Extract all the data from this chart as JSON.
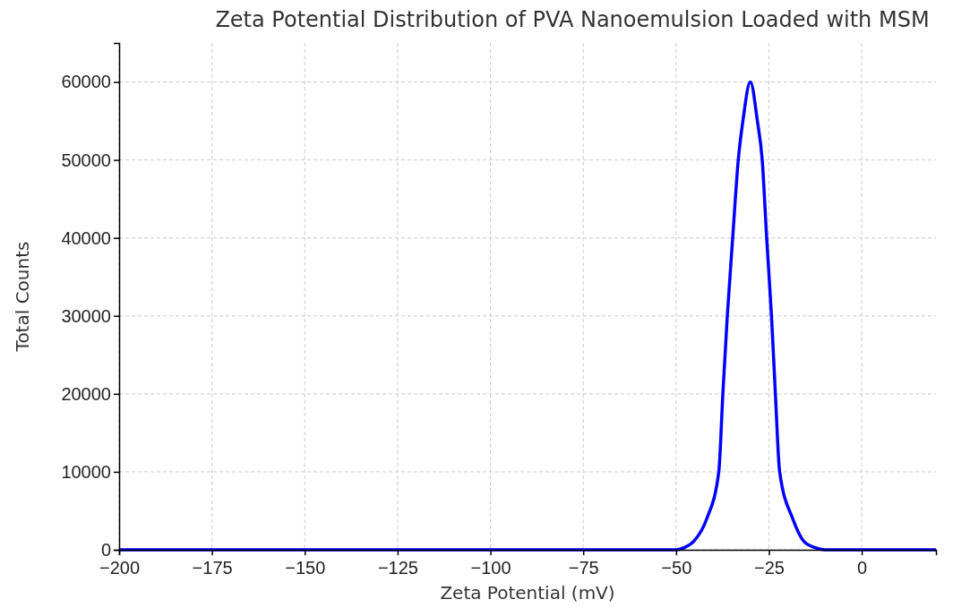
{
  "chart_data": {
    "type": "line",
    "title": "Zeta Potential Distribution of PVA Nanoemulsion Loaded with MSM",
    "xlabel": "Zeta Potential (mV)",
    "ylabel": "Total Counts",
    "x": [
      -200,
      -100,
      -50,
      -47.7,
      -45.2,
      -41.8,
      -38.5,
      -37.4,
      -36.2,
      -34.75,
      -33.25,
      -32,
      -30,
      -28.1,
      -26.8,
      -25.6,
      -24.3,
      -23.25,
      -22.1,
      -18.5,
      -15.6,
      -12.7,
      -10,
      0,
      20
    ],
    "series": [
      {
        "color": "#0000ff",
        "values": [
          0,
          0,
          0,
          300,
          1100,
          3900,
          10000,
          20000,
          30000,
          40000,
          50000,
          55000,
          60000,
          55000,
          50000,
          40000,
          30000,
          20000,
          10000,
          3900,
          1100,
          300,
          0,
          0,
          0
        ]
      }
    ],
    "xlim": [
      -200,
      20
    ],
    "ylim": [
      0,
      65000
    ],
    "xticks": [
      {
        "value": -200,
        "label": "−200"
      },
      {
        "value": -175,
        "label": "−175"
      },
      {
        "value": -150,
        "label": "−150"
      },
      {
        "value": -125,
        "label": "−125"
      },
      {
        "value": -100,
        "label": "−100"
      },
      {
        "value": -75,
        "label": "−75"
      },
      {
        "value": -50,
        "label": "−50"
      },
      {
        "value": -25,
        "label": "−25"
      },
      0
    ],
    "yticks": [
      0,
      10000,
      20000,
      30000,
      40000,
      50000,
      60000
    ],
    "grid": true,
    "marker": "none",
    "line_style": "solid"
  }
}
